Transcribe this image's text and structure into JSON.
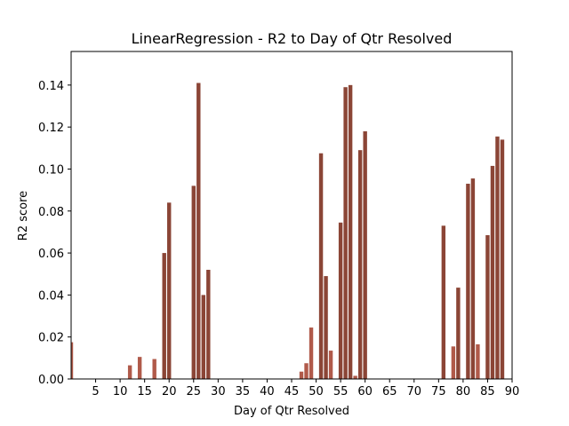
{
  "chart_data": {
    "type": "bar",
    "title": "LinearRegression - R2 to Day of Qtr Resolved",
    "xlabel": "Day of Qtr Resolved",
    "ylabel": "R2 score",
    "xlim": [
      0,
      90
    ],
    "ylim": [
      0,
      0.156
    ],
    "xticks": [
      5,
      10,
      15,
      20,
      25,
      30,
      35,
      40,
      45,
      50,
      55,
      60,
      65,
      70,
      75,
      80,
      85,
      90
    ],
    "yticks": [
      0.0,
      0.02,
      0.04,
      0.06,
      0.08,
      0.1,
      0.12,
      0.14
    ],
    "bar_color": "#8b4536",
    "bar_color_light": "#b05a4a",
    "x": [
      0,
      12,
      14,
      17,
      19,
      20,
      25,
      26,
      27,
      28,
      47,
      48,
      49,
      51,
      52,
      53,
      55,
      56,
      57,
      58,
      59,
      60,
      76,
      78,
      79,
      81,
      82,
      83,
      85,
      86,
      87,
      88
    ],
    "values": [
      0.0175,
      0.0065,
      0.0105,
      0.0095,
      0.06,
      0.084,
      0.092,
      0.141,
      0.04,
      0.052,
      0.0035,
      0.0075,
      0.0245,
      0.1075,
      0.049,
      0.0135,
      0.0745,
      0.139,
      0.14,
      0.0015,
      0.109,
      0.118,
      0.073,
      0.0155,
      0.0435,
      0.093,
      0.0955,
      0.0165,
      0.0685,
      0.1015,
      0.1155,
      0.114
    ]
  }
}
